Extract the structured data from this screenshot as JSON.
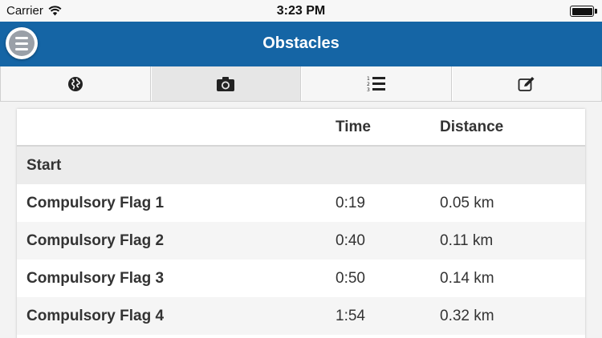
{
  "status_bar": {
    "carrier": "Carrier",
    "time": "3:23 PM",
    "battery_level": 1.0
  },
  "navbar": {
    "title": "Obstacles",
    "menu_icon": "hamburger-menu-icon",
    "color": "#1565a5"
  },
  "tabs": [
    {
      "icon": "globe-icon",
      "active": false
    },
    {
      "icon": "camera-icon",
      "active": true
    },
    {
      "icon": "numbered-list-icon",
      "active": false
    },
    {
      "icon": "edit-icon",
      "active": false
    }
  ],
  "table": {
    "headers": {
      "name": "",
      "time": "Time",
      "distance": "Distance"
    },
    "rows": [
      {
        "name": "Start",
        "time": "",
        "distance": ""
      },
      {
        "name": "Compulsory Flag 1",
        "time": "0:19",
        "distance": "0.05 km"
      },
      {
        "name": "Compulsory Flag 2",
        "time": "0:40",
        "distance": "0.11 km"
      },
      {
        "name": "Compulsory Flag 3",
        "time": "0:50",
        "distance": "0.14 km"
      },
      {
        "name": "Compulsory Flag 4",
        "time": "1:54",
        "distance": "0.32 km"
      }
    ]
  }
}
